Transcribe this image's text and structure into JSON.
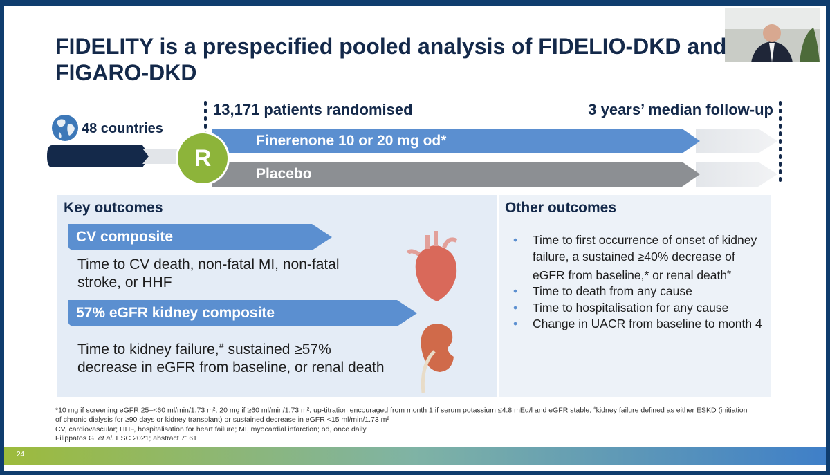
{
  "title": "FIDELITY is a prespecified pooled analysis of FIDELIO-DKD and FIGARO-DKD",
  "design": {
    "countries": "48 countries",
    "patients": "13,171 patients randomised",
    "follow_up": "3 years’ median follow-up",
    "randomisation": "R",
    "arms": [
      "Finerenone 10 or 20 mg od*",
      "Placebo"
    ]
  },
  "key_outcomes": {
    "heading": "Key outcomes",
    "items": [
      {
        "label": "CV composite",
        "description": [
          "Time to CV death, non-fatal MI, non-fatal stroke, or HHF"
        ]
      },
      {
        "label": "57% eGFR kidney composite",
        "description": [
          "Time to kidney failure,",
          "#",
          " sustained ≥57% decrease in eGFR from baseline, or renal death"
        ]
      }
    ]
  },
  "other_outcomes": {
    "heading": "Other outcomes",
    "items": [
      [
        "Time to first occurrence of onset of kidney failure, a sustained ≥40% decrease of eGFR from baseline,* or renal death",
        "#"
      ],
      [
        "Time to death from any cause"
      ],
      [
        "Time to hospitalisation for any cause"
      ],
      [
        "Change in UACR from baseline to month 4"
      ]
    ]
  },
  "footnotes": {
    "lines": [
      [
        "*10 mg if screening eGFR 25–<60 ml/min/1.73 m²; 20 mg if ≥60 ml/min/1.73 m², up-titration encouraged from month 1 if serum potassium ≤4.8 mEq/l and eGFR stable; ",
        "#",
        "kidney failure defined as either ESKD (initiation of chronic dialysis for ≥90 days or kidney transplant) or sustained decrease in eGFR <15 ml/min/1.73 m²"
      ],
      [
        "CV, cardiovascular; HHF, hospitalisation for heart failure; MI, myocardial infarction; od, once daily"
      ],
      [
        "Filippatos G, ",
        "et al.",
        " ESC 2021; abstract 7161"
      ]
    ]
  },
  "page_number": "24"
}
